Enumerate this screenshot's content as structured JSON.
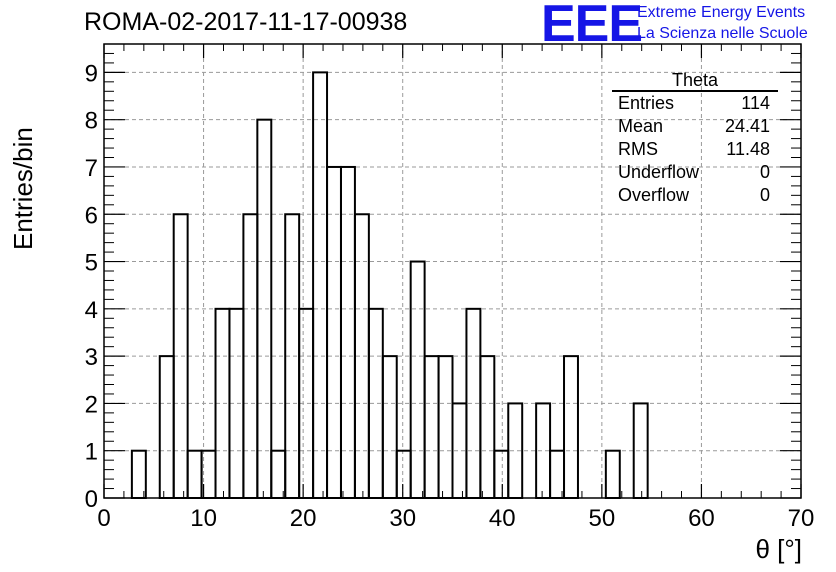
{
  "header": {
    "title": "ROMA-02-2017-11-17-00938",
    "logo_text": "EEE",
    "logo_line1": "Extreme Energy Events",
    "logo_line2": "La Scienza nelle Scuole"
  },
  "stats_box": {
    "title": "Theta",
    "rows": [
      {
        "label": "Entries",
        "value": "114"
      },
      {
        "label": "Mean",
        "value": "24.41"
      },
      {
        "label": "RMS",
        "value": "11.48"
      },
      {
        "label": "Underflow",
        "value": "0"
      },
      {
        "label": "Overflow",
        "value": "0"
      }
    ]
  },
  "colors": {
    "accent": "#1515e6",
    "line": "#000000",
    "grid": "#9a9a9a"
  },
  "chart_data": {
    "type": "bar",
    "style": "step-histogram",
    "xlabel": "θ [°]",
    "ylabel": "Entries/bin",
    "xlim": [
      0,
      70
    ],
    "ylim": [
      0,
      9.6
    ],
    "grid": true,
    "bin_width": 1.4,
    "x_ticks": [
      "0",
      "10",
      "20",
      "30",
      "40",
      "50",
      "60",
      "70"
    ],
    "y_ticks": [
      "0",
      "1",
      "2",
      "3",
      "4",
      "5",
      "6",
      "7",
      "8",
      "9"
    ],
    "values": [
      0,
      0,
      1,
      0,
      3,
      6,
      1,
      1,
      4,
      4,
      6,
      8,
      1,
      6,
      4,
      9,
      7,
      7,
      6,
      4,
      3,
      1,
      5,
      3,
      3,
      2,
      4,
      3,
      1,
      2,
      0,
      2,
      1,
      3,
      0,
      0,
      1,
      0,
      2,
      0,
      0,
      0,
      0,
      0,
      0,
      0,
      0,
      0,
      0,
      0
    ]
  }
}
